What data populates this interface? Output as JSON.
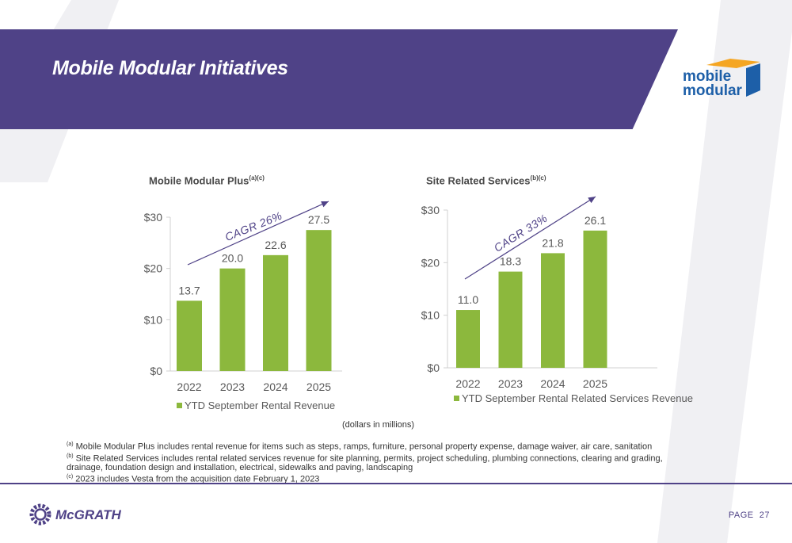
{
  "page": {
    "title": "Mobile Modular Initiatives",
    "units_note": "(dollars in millions)",
    "page_label": "PAGE",
    "page_number": "27",
    "accent_color": "#4f4287",
    "bar_color": "#8cb83d"
  },
  "logos": {
    "mobile_modular_line1": "mobile",
    "mobile_modular_line2": "modular",
    "mcgrath": "McGRATH"
  },
  "footnotes": {
    "a_marker": "(a)",
    "a_text": "Mobile Modular Plus includes rental revenue for items such as steps, ramps, furniture, personal property expense, damage waiver, air care, sanitation",
    "b_marker": "(b)",
    "b_text": "Site Related Services includes rental related services revenue for site planning, permits, project scheduling, plumbing connections, clearing and grading, drainage, foundation design and installation, electrical, sidewalks and paving, landscaping",
    "c_marker": "(c)",
    "c_text": "2023 includes Vesta from the acquisition date February 1, 2023"
  },
  "chart_data": [
    {
      "type": "bar",
      "title": "Mobile Modular Plus",
      "title_sup": "(a)(c)",
      "categories": [
        "2022",
        "2023",
        "2024",
        "2025"
      ],
      "series": [
        {
          "name": "YTD September Rental Revenue",
          "values": [
            13.7,
            20.0,
            22.6,
            27.5
          ]
        }
      ],
      "value_labels": [
        "13.7",
        "20.0",
        "22.6",
        "27.5"
      ],
      "y_ticks": [
        0,
        10,
        20,
        30
      ],
      "y_tick_labels": [
        "$0",
        "$10",
        "$20",
        "$30"
      ],
      "ylim": [
        0,
        30
      ],
      "annotation": "CAGR 26%",
      "legend_position": "bottom"
    },
    {
      "type": "bar",
      "title": "Site Related Services",
      "title_sup": "(b)(c)",
      "categories": [
        "2022",
        "2023",
        "2024",
        "2025"
      ],
      "series": [
        {
          "name": "YTD September Rental Related Services Revenue",
          "values": [
            11.0,
            18.3,
            21.8,
            26.1
          ]
        }
      ],
      "value_labels": [
        "11.0",
        "18.3",
        "21.8",
        "26.1"
      ],
      "y_ticks": [
        0,
        10,
        20,
        30
      ],
      "y_tick_labels": [
        "$0",
        "$10",
        "$20",
        "$30"
      ],
      "ylim": [
        0,
        30
      ],
      "annotation": "CAGR 33%",
      "legend_position": "bottom"
    }
  ]
}
